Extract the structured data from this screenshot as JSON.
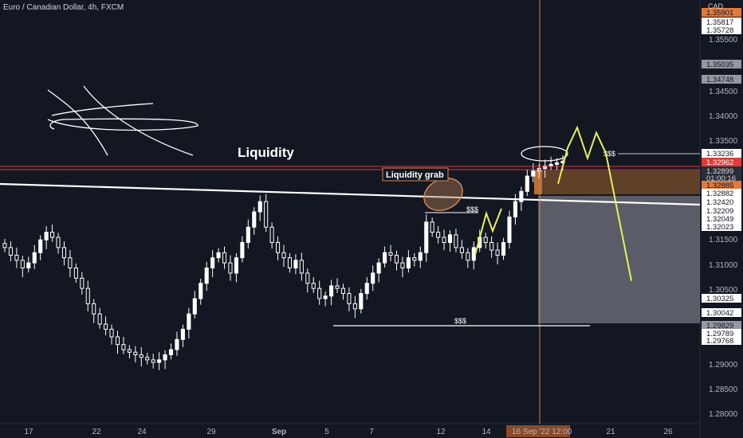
{
  "header": {
    "symbol": "Euro / Canadian Dollar, 4h, FXCM",
    "currency": "CAD"
  },
  "colors": {
    "background": "#131722",
    "bull_candle": "#ffffff",
    "bear_candle": "#ffffff",
    "resistance_line": "#e53935",
    "trend_line": "#ffffff",
    "projection": "#e6f05a",
    "highlight_box": "#a0622f",
    "grey_box": "#9598a1",
    "cursor_line": "#e07a3c"
  },
  "annotations": {
    "liquidity_title": "Liquidity",
    "liquidity_grab": "Liquidity grab",
    "dollar_marks": [
      "$$$",
      "$$$",
      "$$$"
    ]
  },
  "price_axis": {
    "ticks": [
      "1.35500",
      "1.34500",
      "1.34000",
      "1.33500",
      "1.31500",
      "1.31000",
      "1.30500",
      "1.29000",
      "1.28500",
      "1.28000"
    ],
    "labels": [
      {
        "text": "1.35901",
        "style": "orange"
      },
      {
        "text": "1.35817",
        "style": "white"
      },
      {
        "text": "1.35728",
        "style": "white"
      },
      {
        "text": "1.35035",
        "style": "grey"
      },
      {
        "text": "1.34748",
        "style": "grey"
      },
      {
        "text": "1.33236",
        "style": "white"
      },
      {
        "text": "1.32962",
        "style": "red"
      },
      {
        "text": "1.32899",
        "style": "dark"
      },
      {
        "text": "01:00:16",
        "style": "dark"
      },
      {
        "text": "1.32885",
        "style": "orange"
      },
      {
        "text": "1.32882",
        "style": "white"
      },
      {
        "text": "1.32420",
        "style": "white"
      },
      {
        "text": "1.32209",
        "style": "white"
      },
      {
        "text": "1.32049",
        "style": "white"
      },
      {
        "text": "1.32023",
        "style": "white"
      },
      {
        "text": "1.30325",
        "style": "white"
      },
      {
        "text": "1.30042",
        "style": "white"
      },
      {
        "text": "1.29829",
        "style": "grey"
      },
      {
        "text": "1.29789",
        "style": "white"
      },
      {
        "text": "1.29768",
        "style": "white"
      }
    ]
  },
  "time_axis": {
    "ticks": [
      "17",
      "22",
      "24",
      "29",
      "Sep",
      "5",
      "7",
      "12",
      "14",
      "21",
      "26"
    ],
    "cursor_label": "16 Sep '22  12:00"
  },
  "chart_data": {
    "type": "candlestick",
    "title": "Euro / Canadian Dollar, 4h, FXCM",
    "ylabel": "CAD",
    "ylim": [
      1.2775,
      1.3605
    ],
    "levels": {
      "resistance_upper": 1.3298,
      "resistance_lower": 1.3293,
      "trendline_start": 1.3266,
      "trendline_end": 1.3225,
      "liquidity_high": 1.3324,
      "liquidity_low": 1.2983
    },
    "closes": [
      1.312,
      1.3105,
      1.3095,
      1.308,
      1.309,
      1.311,
      1.3135,
      1.315,
      1.314,
      1.312,
      1.31,
      1.308,
      1.306,
      1.304,
      1.301,
      1.299,
      1.297,
      1.296,
      1.2945,
      1.293,
      1.292,
      1.2915,
      1.291,
      1.2905,
      1.29,
      1.2895,
      1.29,
      1.291,
      1.292,
      1.294,
      1.296,
      1.299,
      1.302,
      1.305,
      1.308,
      1.31,
      1.311,
      1.309,
      1.307,
      1.31,
      1.313,
      1.316,
      1.319,
      1.321,
      1.316,
      1.313,
      1.311,
      1.31,
      1.308,
      1.3095,
      1.307,
      1.305,
      1.304,
      1.302,
      1.3025,
      1.3045,
      1.304,
      1.303,
      1.301,
      1.3,
      1.303,
      1.305,
      1.307,
      1.309,
      1.311,
      1.3105,
      1.309,
      1.308,
      1.31,
      1.3095,
      1.311,
      1.317,
      1.315,
      1.314,
      1.313,
      1.3145,
      1.312,
      1.311,
      1.3095,
      1.312,
      1.314,
      1.313,
      1.3115,
      1.3105,
      1.313,
      1.318,
      1.321,
      1.323,
      1.326,
      1.327,
      1.3275,
      1.328,
      1.3283,
      1.3286,
      1.3289
    ],
    "projection_path": [
      1.3245,
      1.3315,
      1.3355,
      1.3295,
      1.3345,
      1.3305,
      1.3055
    ]
  }
}
